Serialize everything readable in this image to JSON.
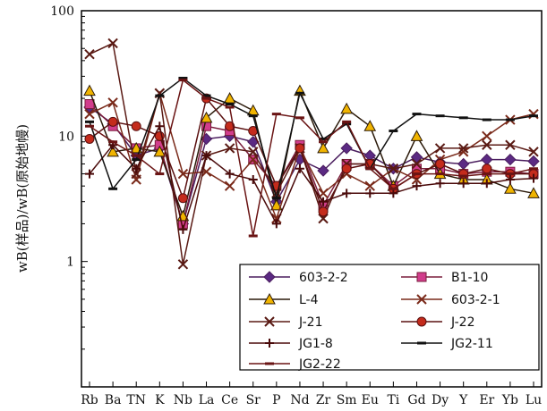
{
  "chart_data": {
    "type": "line",
    "yscale": "log",
    "ylim": [
      0.1,
      100
    ],
    "yticks": [
      "1",
      "10",
      "100"
    ],
    "ylabel": "wB(样品)/wB(原始地幔)",
    "categories": [
      "Rb",
      "Ba",
      "TN",
      "K",
      "Nb",
      "La",
      "Ce",
      "Sr",
      "P",
      "Nd",
      "Zr",
      "Sm",
      "Eu",
      "Ti",
      "Gd",
      "Dy",
      "Y",
      "Er",
      "Yb",
      "Lu"
    ],
    "series": [
      {
        "name": "603-2-2",
        "marker": "diamond",
        "color": "#4a1d5e",
        "fill": "#5b2a83",
        "values": [
          17,
          12.5,
          7,
          8,
          2,
          9.5,
          10,
          9,
          3,
          6.5,
          5.3,
          8,
          7,
          5.5,
          6.8,
          6.2,
          6,
          6.5,
          6.5,
          6.3
        ]
      },
      {
        "name": "B1-10",
        "marker": "square",
        "color": "#7a1d3c",
        "fill": "#d13d8c",
        "values": [
          18,
          12,
          8,
          8.5,
          2,
          12,
          11,
          6.5,
          4,
          8.5,
          2.8,
          6,
          6,
          4,
          5.5,
          5.5,
          5,
          5.2,
          5.2,
          5
        ]
      },
      {
        "name": "L-4",
        "marker": "triangle",
        "color": "#2b1a0a",
        "fill": "#f0b400",
        "values": [
          23,
          7.5,
          8,
          7.5,
          2.3,
          14,
          20,
          16,
          2.8,
          23,
          8,
          16.5,
          12,
          4,
          10,
          5,
          4.5,
          4.5,
          3.8,
          3.5
        ]
      },
      {
        "name": "603-2-1",
        "marker": "x",
        "color": "#7a2a1a",
        "fill": "none",
        "values": [
          15,
          18.5,
          4.5,
          22,
          5,
          5.2,
          4,
          6.5,
          2.2,
          8,
          3.5,
          5,
          4,
          5.5,
          4.5,
          6.5,
          7.5,
          10,
          13.5,
          15
        ]
      },
      {
        "name": "J-21",
        "marker": "x",
        "color": "#5a1a14",
        "fill": "none",
        "values": [
          45,
          55,
          5,
          22,
          0.95,
          7,
          8,
          7.5,
          3.5,
          8,
          2.2,
          6,
          6,
          5.5,
          6,
          8,
          8,
          8.5,
          8.5,
          7.5
        ]
      },
      {
        "name": "J-22",
        "marker": "circle",
        "color": "#5a1010",
        "fill": "#c42b1c",
        "values": [
          9.5,
          13,
          12,
          10,
          3.2,
          20,
          12,
          11,
          4,
          8,
          2.5,
          5.5,
          6,
          3.8,
          5,
          6,
          5,
          5.5,
          5,
          5
        ]
      },
      {
        "name": "JG1-8",
        "marker": "plus",
        "color": "#4a0a0a",
        "fill": "none",
        "values": [
          5,
          8.5,
          5.5,
          12,
          1.8,
          7,
          5,
          4.5,
          2,
          5.5,
          3,
          3.5,
          3.5,
          3.5,
          4,
          4.2,
          4.2,
          4.2,
          4.5,
          4.6
        ]
      },
      {
        "name": "JG2-11",
        "marker": "dash",
        "color": "#111111",
        "fill": "none",
        "values": [
          13,
          3.8,
          6.5,
          21,
          29,
          21,
          18,
          14.5,
          3.2,
          22,
          9.5,
          12.5,
          5.5,
          11,
          15,
          14.5,
          14,
          13.5,
          13.5,
          14.5
        ]
      },
      {
        "name": "JG2-22",
        "marker": "dash",
        "color": "#6a1414",
        "fill": "none",
        "values": [
          12,
          9,
          7,
          5,
          28,
          20,
          17,
          1.6,
          15,
          14,
          9,
          13,
          5.5,
          3.8,
          5,
          5,
          4.8,
          5,
          5,
          5.5
        ]
      }
    ],
    "legend_position": "bottom-right"
  }
}
